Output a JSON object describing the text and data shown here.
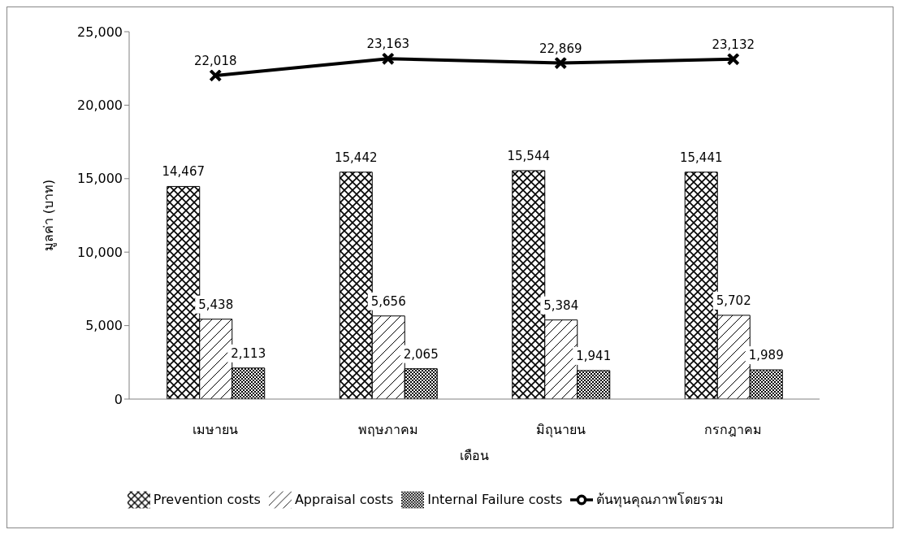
{
  "chart_data": {
    "type": "bar",
    "ylabel": "มูลค่า (บาท)",
    "xlabel": "เดือน",
    "categories": [
      "เมษายน",
      "พฤษภาคม",
      "มิถุนายน",
      "กรกฎาคม"
    ],
    "series": [
      {
        "name": "Prevention costs",
        "color": "#000000",
        "values": [
          14467,
          15442,
          15544,
          15441
        ],
        "value_labels": [
          "14,467",
          "15,442",
          "15,544",
          "15,441"
        ]
      },
      {
        "name": "Appraisal costs",
        "color": "#000000",
        "values": [
          5438,
          5656,
          5384,
          5702
        ],
        "value_labels": [
          "5,438",
          "5,656",
          "5,384",
          "5,702"
        ]
      },
      {
        "name": "Internal Failure costs",
        "color": "#000000",
        "values": [
          2113,
          2065,
          1941,
          1989
        ],
        "value_labels": [
          "2,113",
          "2,065",
          "1,941",
          "1,989"
        ]
      },
      {
        "name": "ต้นทุนคุณภาพโดยรวม",
        "type": "line",
        "color": "#000000",
        "marker": "cross",
        "values": [
          22018,
          23163,
          22869,
          23132
        ],
        "value_labels": [
          "22,018",
          "23,163",
          "22,869",
          "23,132"
        ]
      }
    ],
    "ylim": [
      0,
      25000
    ],
    "yticks": [
      {
        "value": 0,
        "label": "0"
      },
      {
        "value": 5000,
        "label": "5,000"
      },
      {
        "value": 10000,
        "label": "10,000"
      },
      {
        "value": 15000,
        "label": "15,000"
      },
      {
        "value": 20000,
        "label": "20,000"
      },
      {
        "value": 25000,
        "label": "25,000"
      }
    ],
    "grid": false,
    "legend": "bottom"
  }
}
